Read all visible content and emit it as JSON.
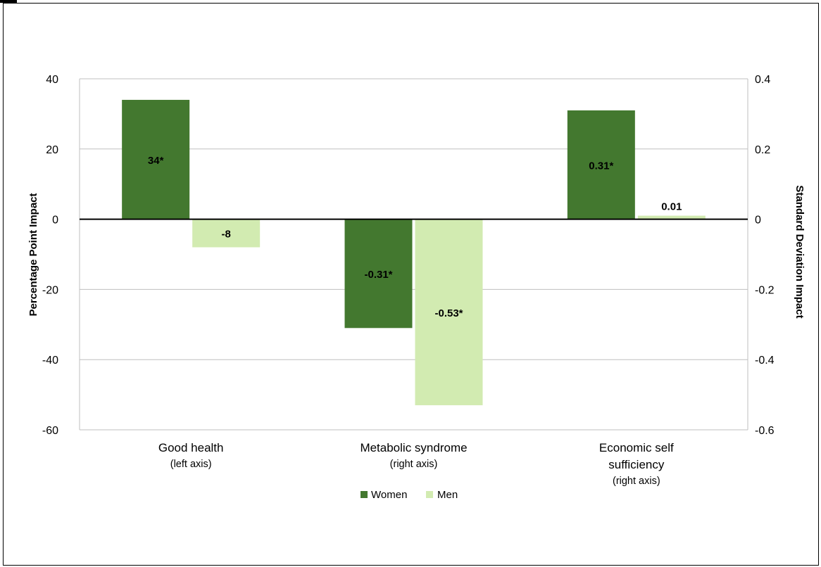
{
  "chart_data": {
    "type": "bar",
    "title": "",
    "categories": [
      {
        "lines": [
          "Good health"
        ],
        "note": "(left axis)",
        "axis": "left"
      },
      {
        "lines": [
          "Metabolic syndrome"
        ],
        "note": "(right axis)",
        "axis": "right"
      },
      {
        "lines": [
          "Economic self",
          "sufficiency"
        ],
        "note": "(right axis)",
        "axis": "right"
      }
    ],
    "series": [
      {
        "name": "Women",
        "color": "#43782f",
        "values": [
          34,
          -0.31,
          0.31
        ],
        "labels": [
          "34*",
          "-0.31*",
          "0.31*"
        ]
      },
      {
        "name": "Men",
        "color": "#d2ebb1",
        "values": [
          -8,
          -0.53,
          0.01
        ],
        "labels": [
          "-8",
          "-0.53*",
          "0.01"
        ]
      }
    ],
    "left_axis": {
      "label": "Percentage Point Impact",
      "ylim": [
        -60,
        40
      ],
      "ticks": [
        40,
        20,
        0,
        -20,
        -40,
        -60
      ],
      "tick_labels": [
        "40",
        "20",
        "0",
        "-20",
        "-40",
        "-60"
      ]
    },
    "right_axis": {
      "label": "Standard Deviation Impact",
      "ylim": [
        -0.6,
        0.4
      ],
      "ticks": [
        0.4,
        0.2,
        0,
        -0.2,
        -0.4,
        -0.6
      ],
      "tick_labels": [
        "0.4",
        "0.2",
        "0",
        "-0.2",
        "-0.4",
        "-0.6"
      ]
    },
    "grid": true,
    "legend": {
      "position": "bottom"
    }
  }
}
